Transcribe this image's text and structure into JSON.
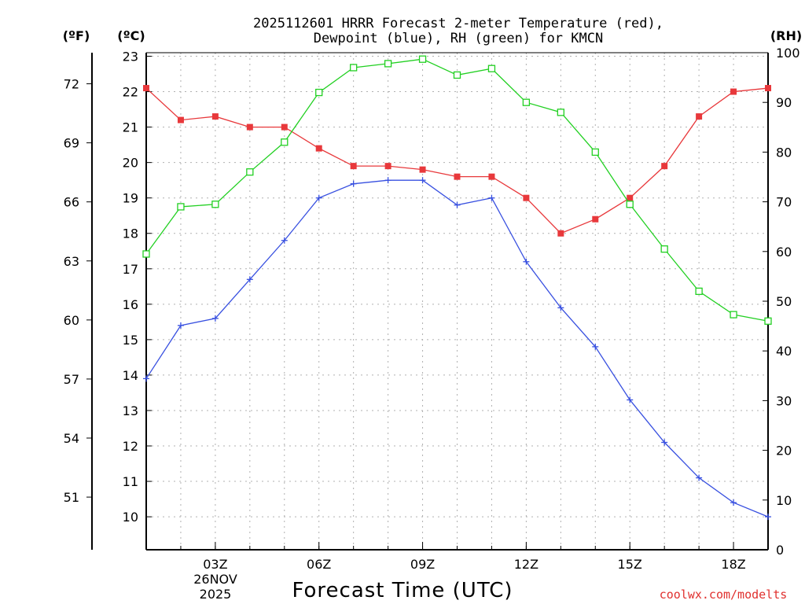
{
  "chart_data": {
    "type": "line",
    "title_line1": "2025112601 HRRR Forecast 2-meter Temperature (red),",
    "title_line2": "Dewpoint (blue), RH (green) for KMCN",
    "xlabel": "Forecast Time (UTC)",
    "unit_labels": {
      "fahrenheit": "(ºF)",
      "celsius": "(ºC)",
      "rh": "(RH)"
    },
    "date_label": [
      "26NOV",
      "2025"
    ],
    "credit": "coolwx.com/modelts",
    "x_hours": [
      1,
      2,
      3,
      4,
      5,
      6,
      7,
      8,
      9,
      10,
      11,
      12,
      13,
      14,
      15,
      16,
      17,
      18,
      19
    ],
    "x_range": [
      1,
      19
    ],
    "x_ticks": [
      {
        "hour": 3,
        "label": "03Z"
      },
      {
        "hour": 6,
        "label": "06Z"
      },
      {
        "hour": 9,
        "label": "09Z"
      },
      {
        "hour": 12,
        "label": "12Z"
      },
      {
        "hour": 15,
        "label": "15Z"
      },
      {
        "hour": 18,
        "label": "18Z"
      }
    ],
    "celsius_axis": {
      "range": [
        9.07,
        23.1
      ],
      "ticks": [
        "10",
        "11",
        "12",
        "13",
        "14",
        "15",
        "16",
        "17",
        "18",
        "19",
        "20",
        "21",
        "22",
        "23"
      ]
    },
    "fahrenheit_axis": {
      "ticks": [
        "51",
        "54",
        "57",
        "60",
        "63",
        "66",
        "69",
        "72"
      ]
    },
    "rh_axis": {
      "range": [
        0,
        100
      ],
      "ticks": [
        "0",
        "10",
        "20",
        "30",
        "40",
        "50",
        "60",
        "70",
        "80",
        "90",
        "100"
      ]
    },
    "series": [
      {
        "name": "Temperature",
        "axis": "celsius",
        "color": "#e8383b",
        "marker": "filled-square",
        "values": [
          22.1,
          21.2,
          21.3,
          21.0,
          21.0,
          20.4,
          19.9,
          19.9,
          19.8,
          19.6,
          19.6,
          19.0,
          18.0,
          18.4,
          19.0,
          19.9,
          21.3,
          22.0,
          22.1
        ]
      },
      {
        "name": "Dewpoint",
        "axis": "celsius",
        "color": "#3850e0",
        "marker": "plus",
        "values": [
          13.9,
          15.4,
          15.6,
          16.7,
          17.8,
          19.0,
          19.4,
          19.5,
          19.5,
          18.8,
          19.0,
          17.2,
          15.9,
          14.8,
          13.3,
          12.1,
          11.1,
          10.4,
          10.0
        ]
      },
      {
        "name": "RH",
        "axis": "rh",
        "color": "#22d022",
        "marker": "open-square",
        "values": [
          59.5,
          69,
          69.5,
          76,
          82,
          92,
          97,
          97.8,
          98.7,
          95.5,
          96.8,
          90,
          88,
          80,
          69.5,
          60.5,
          52,
          47.3,
          46
        ]
      }
    ]
  }
}
